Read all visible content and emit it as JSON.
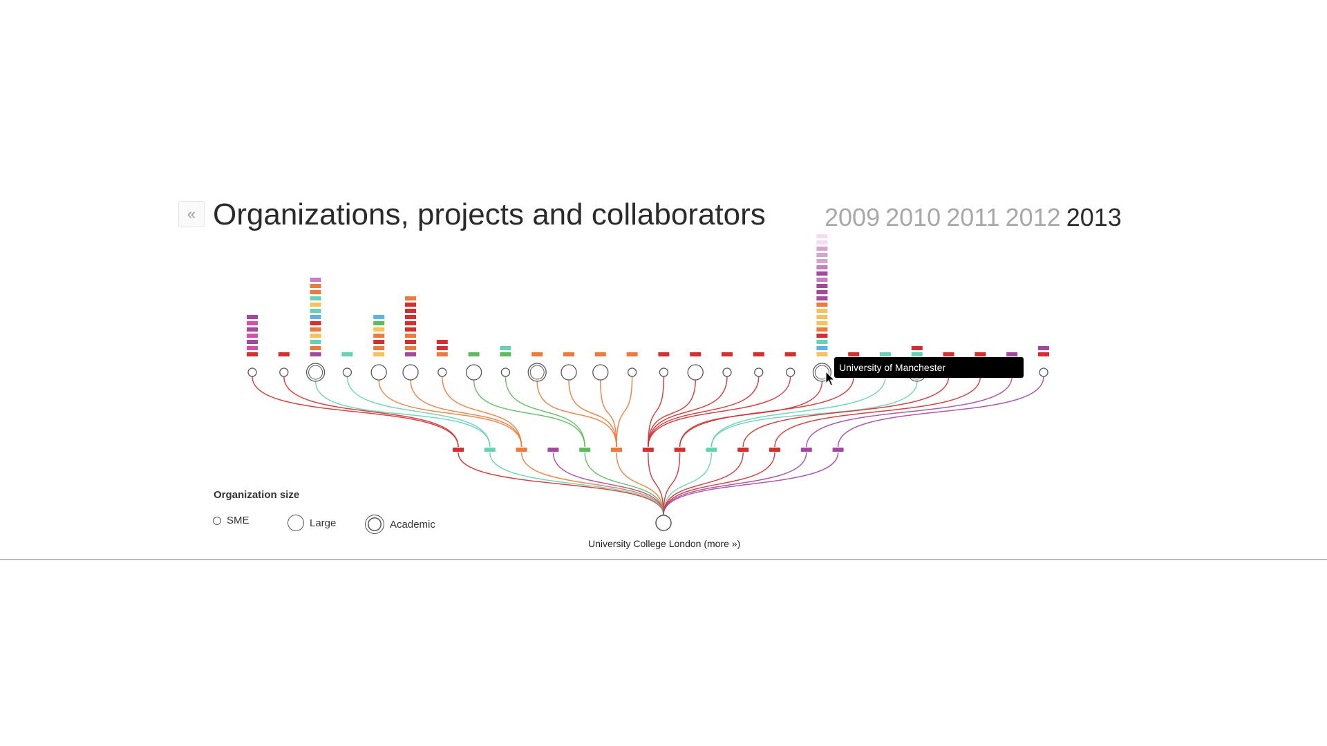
{
  "header": {
    "back_label": "«",
    "title": "Organizations, projects and collaborators",
    "years": [
      "2009",
      "2010",
      "2011",
      "2012",
      "2013"
    ],
    "active_year": "2013"
  },
  "legend": {
    "title": "Organization size",
    "items": [
      {
        "label": "SME",
        "type": "sme"
      },
      {
        "label": "Large",
        "type": "large"
      },
      {
        "label": "Academic",
        "type": "academic"
      }
    ]
  },
  "root": {
    "name": "University College London",
    "more_label": "(more »)"
  },
  "tooltip": {
    "text": "University of Manchester"
  },
  "colors": {
    "red": "#d32f2f",
    "teal": "#66d1b4",
    "orange": "#ec7a3c",
    "purple": "#a4489e",
    "green": "#5cbb5c",
    "magenta": "#d94fa8",
    "yellow": "#f5c25e",
    "blue": "#5ab4e8",
    "lavender": "#c47ec4",
    "pink_light": "#f0dff0",
    "pink_mid": "#d9a3cf",
    "line": "#555555"
  },
  "projects": [
    "red",
    "teal",
    "orange",
    "purple",
    "green",
    "orange",
    "red",
    "red",
    "teal",
    "red",
    "red",
    "purple",
    "purple"
  ],
  "organizations": [
    {
      "size": "sme",
      "project": 0,
      "stack": [
        "red",
        "magenta",
        "purple",
        "magenta",
        "purple",
        "magenta",
        "purple"
      ]
    },
    {
      "size": "sme",
      "project": 0,
      "stack": [
        "red"
      ]
    },
    {
      "size": "academic",
      "project": 1,
      "stack": [
        "purple",
        "orange",
        "teal",
        "yellow",
        "orange",
        "red",
        "blue",
        "teal",
        "yellow",
        "teal",
        "orange",
        "orange",
        "lavender"
      ]
    },
    {
      "size": "sme",
      "project": 1,
      "stack": [
        "teal"
      ]
    },
    {
      "size": "large",
      "project": 2,
      "stack": [
        "yellow",
        "orange",
        "red",
        "orange",
        "yellow",
        "green",
        "blue"
      ]
    },
    {
      "size": "large",
      "project": 2,
      "stack": [
        "purple",
        "orange",
        "red",
        "orange",
        "red",
        "red",
        "red",
        "red",
        "red",
        "orange"
      ]
    },
    {
      "size": "sme",
      "project": 2,
      "stack": [
        "orange",
        "red",
        "red"
      ]
    },
    {
      "size": "large",
      "project": 4,
      "stack": [
        "green"
      ]
    },
    {
      "size": "sme",
      "project": 4,
      "stack": [
        "green",
        "teal"
      ]
    },
    {
      "size": "academic",
      "project": 5,
      "stack": [
        "orange"
      ]
    },
    {
      "size": "large",
      "project": 5,
      "stack": [
        "orange"
      ]
    },
    {
      "size": "large",
      "project": 5,
      "stack": [
        "orange"
      ]
    },
    {
      "size": "sme",
      "project": 5,
      "stack": [
        "orange"
      ]
    },
    {
      "size": "sme",
      "project": 6,
      "stack": [
        "red"
      ]
    },
    {
      "size": "large",
      "project": 6,
      "stack": [
        "red"
      ]
    },
    {
      "size": "sme",
      "project": 6,
      "stack": [
        "red"
      ]
    },
    {
      "size": "sme",
      "project": 6,
      "stack": [
        "red"
      ]
    },
    {
      "size": "sme",
      "project": 6,
      "stack": [
        "red"
      ]
    },
    {
      "size": "academic",
      "project": 7,
      "stack": [
        "yellow",
        "blue",
        "teal",
        "red",
        "orange",
        "yellow",
        "yellow",
        "yellow",
        "orange",
        "purple",
        "purple",
        "purple",
        "lavender",
        "purple",
        "lavender",
        "pink_mid",
        "pink_mid",
        "pink_mid",
        "pink_light",
        "pink_light"
      ]
    },
    {
      "size": "sme",
      "project": 7,
      "stack": [
        "red"
      ]
    },
    {
      "size": "sme",
      "project": 8,
      "stack": [
        "teal"
      ]
    },
    {
      "size": "academic",
      "project": 8,
      "stack": [
        "teal",
        "red"
      ]
    },
    {
      "size": "sme",
      "project": 9,
      "stack": [
        "red"
      ]
    },
    {
      "size": "sme",
      "project": 10,
      "stack": [
        "red"
      ]
    },
    {
      "size": "sme",
      "project": 11,
      "stack": [
        "purple"
      ]
    },
    {
      "size": "sme",
      "project": 12,
      "stack": [
        "red",
        "purple"
      ]
    }
  ]
}
